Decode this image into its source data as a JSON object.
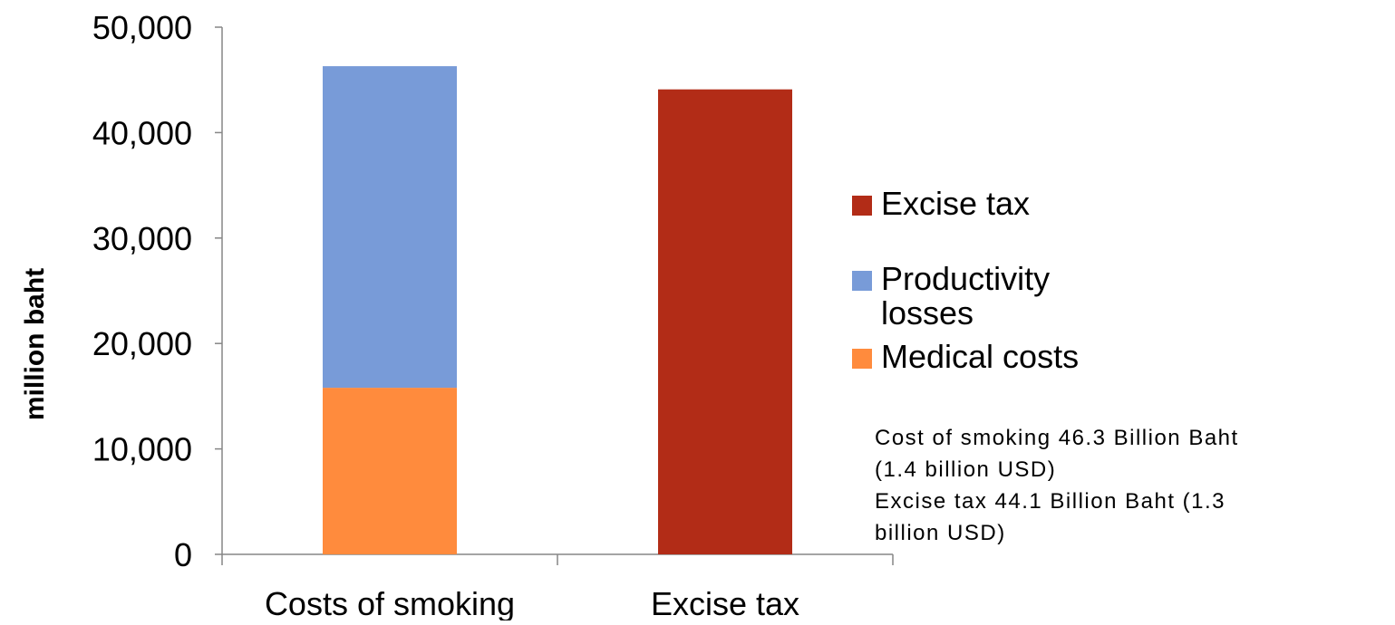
{
  "chart_data": {
    "type": "bar",
    "stacked": true,
    "categories": [
      "Costs of smoking",
      "Excise tax"
    ],
    "series": [
      {
        "name": "Medical costs",
        "color": "#ff8b3d",
        "values": [
          15800,
          0
        ]
      },
      {
        "name": "Productivity losses",
        "color": "#789bd8",
        "values": [
          30500,
          0
        ]
      },
      {
        "name": "Excise tax",
        "color": "#b22c17",
        "values": [
          0,
          44100
        ]
      }
    ],
    "ylabel": "million baht",
    "ylim": [
      0,
      50000
    ],
    "yticks": [
      0,
      10000,
      20000,
      30000,
      40000,
      50000
    ],
    "ytick_labels": [
      "0",
      "10,000",
      "20,000",
      "30,000",
      "40,000",
      "50,000"
    ],
    "grid": false,
    "legend_position": "right",
    "legend": [
      {
        "label_lines": [
          "Excise tax"
        ],
        "color": "#b22c17"
      },
      {
        "label_lines": [
          "Productivity",
          "losses"
        ],
        "color": "#789bd8"
      },
      {
        "label_lines": [
          "Medical costs"
        ],
        "color": "#ff8b3d"
      }
    ],
    "annotation_lines": [
      "Cost of smoking  46.3 Billion Baht",
      "(1.4 billion USD)",
      "Excise tax 44.1 Billion Baht (1.3",
      "billion USD)"
    ]
  }
}
